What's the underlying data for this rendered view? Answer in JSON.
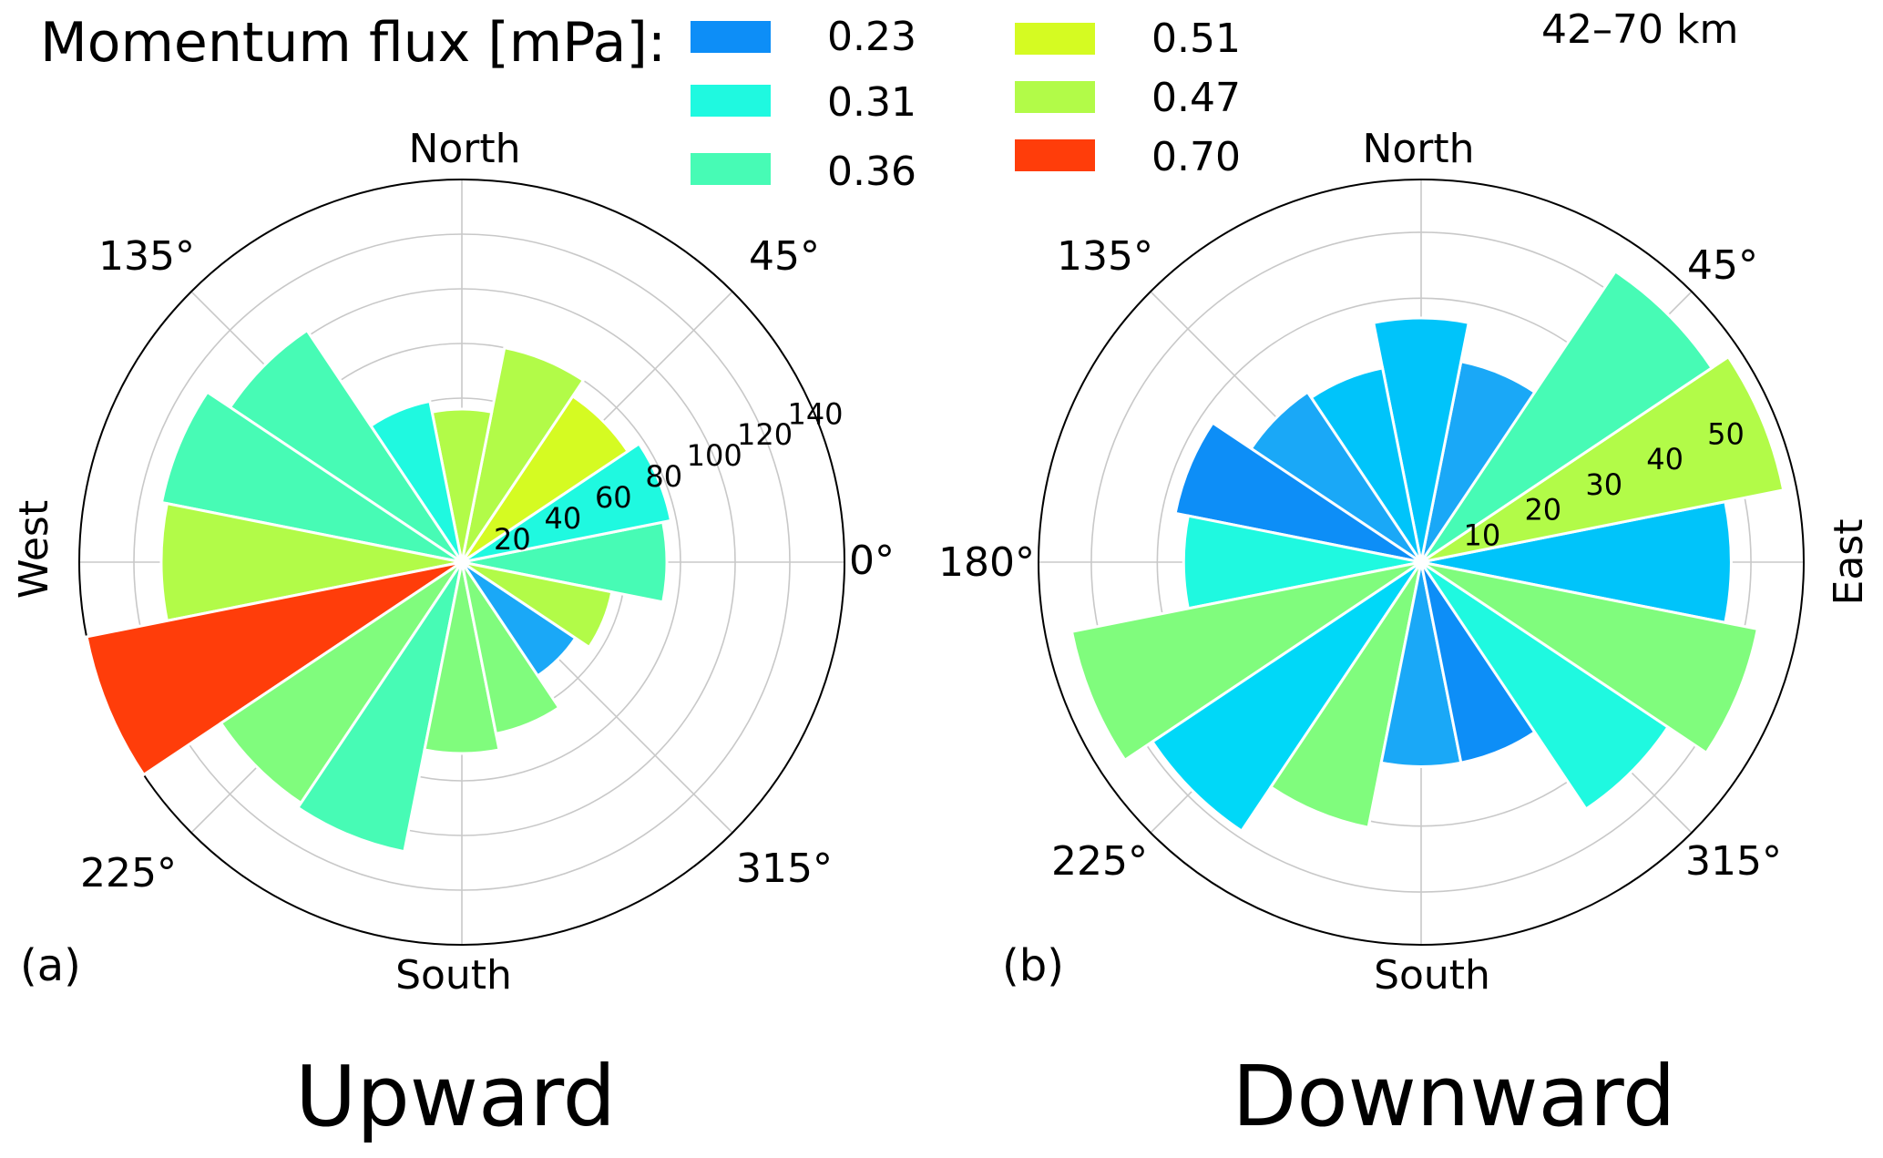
{
  "legend": {
    "title": "Momentum flux [mPa]:",
    "entries": [
      {
        "label": "0.23",
        "color": "#0d8ef7"
      },
      {
        "label": "0.31",
        "color": "#1ff9e0"
      },
      {
        "label": "0.36",
        "color": "#47fbb5"
      },
      {
        "label": "0.51",
        "color": "#d5fb22"
      },
      {
        "label": "0.47",
        "color": "#b2fb48"
      },
      {
        "label": "0.70",
        "color": "#ff3d0a"
      }
    ]
  },
  "altitude_label": "42–70 km",
  "panels": [
    {
      "panel_label": "(a)",
      "title": "Upward",
      "north_label": "North",
      "south_label": "South",
      "east_label": "",
      "west_label": "West",
      "angle_labels": {
        "0": "0°",
        "45": "45°",
        "135": "135°",
        "180": "",
        "225": "225°",
        "315": "315°"
      }
    },
    {
      "panel_label": "(b)",
      "title": "Downward",
      "north_label": "North",
      "south_label": "South",
      "east_label": "East",
      "west_label": "",
      "angle_labels": {
        "0": "",
        "45": "45°",
        "135": "135°",
        "180": "180°",
        "225": "225°",
        "315": "315°"
      }
    }
  ],
  "chart_data": [
    {
      "type": "bar",
      "subtype": "polar-rose",
      "title": "Upward",
      "theta_unit": "degrees",
      "theta_zero": "east",
      "theta_direction": "counterclockwise",
      "radial_ticks": [
        20,
        40,
        60,
        80,
        100,
        120,
        140
      ],
      "rlim": [
        0,
        140
      ],
      "grid": true,
      "bars": [
        {
          "theta": 0,
          "r": 75,
          "color": "#47fbb5"
        },
        {
          "theta": 22.5,
          "r": 78,
          "color": "#1ff9e0"
        },
        {
          "theta": 45,
          "r": 73,
          "color": "#d5fb22"
        },
        {
          "theta": 67.5,
          "r": 80,
          "color": "#b2fb48"
        },
        {
          "theta": 90,
          "r": 56,
          "color": "#b2fb48"
        },
        {
          "theta": 112.5,
          "r": 60,
          "color": "#1ff9e0"
        },
        {
          "theta": 135,
          "r": 102,
          "color": "#47fbb5"
        },
        {
          "theta": 157.5,
          "r": 112,
          "color": "#47fbb5"
        },
        {
          "theta": 180,
          "r": 110,
          "color": "#b2fb48"
        },
        {
          "theta": 202.5,
          "r": 140,
          "color": "#ff3d0a"
        },
        {
          "theta": 225,
          "r": 106,
          "color": "#80fc7d"
        },
        {
          "theta": 247.5,
          "r": 108,
          "color": "#47fbb5"
        },
        {
          "theta": 270,
          "r": 70,
          "color": "#80fc7d"
        },
        {
          "theta": 292.5,
          "r": 64,
          "color": "#80fc7d"
        },
        {
          "theta": 315,
          "r": 50,
          "color": "#1aa8f7"
        },
        {
          "theta": 337.5,
          "r": 56,
          "color": "#b2fb48"
        }
      ]
    },
    {
      "type": "bar",
      "subtype": "polar-rose",
      "title": "Downward",
      "theta_unit": "degrees",
      "theta_zero": "east",
      "theta_direction": "counterclockwise",
      "radial_ticks": [
        10,
        20,
        30,
        40,
        50
      ],
      "rlim": [
        0,
        58
      ],
      "grid": true,
      "bars": [
        {
          "theta": 0,
          "r": 47,
          "color": "#00c4fa"
        },
        {
          "theta": 22.5,
          "r": 56,
          "color": "#b2fb48"
        },
        {
          "theta": 45,
          "r": 53,
          "color": "#47fbb5"
        },
        {
          "theta": 67.5,
          "r": 31,
          "color": "#1aa8f7"
        },
        {
          "theta": 90,
          "r": 37,
          "color": "#00c4fa"
        },
        {
          "theta": 112.5,
          "r": 30,
          "color": "#00c4fa"
        },
        {
          "theta": 135,
          "r": 31,
          "color": "#1aa8f7"
        },
        {
          "theta": 157.5,
          "r": 38,
          "color": "#0d8ef7"
        },
        {
          "theta": 180,
          "r": 36,
          "color": "#1ff9e0"
        },
        {
          "theta": 202.5,
          "r": 54,
          "color": "#80fc7d"
        },
        {
          "theta": 225,
          "r": 49,
          "color": "#00d8f8"
        },
        {
          "theta": 247.5,
          "r": 41,
          "color": "#80fc7d"
        },
        {
          "theta": 270,
          "r": 31,
          "color": "#1aa8f7"
        },
        {
          "theta": 292.5,
          "r": 31,
          "color": "#0d8ef7"
        },
        {
          "theta": 315,
          "r": 45,
          "color": "#1ff9e0"
        },
        {
          "theta": 337.5,
          "r": 52,
          "color": "#80fc7d"
        }
      ]
    }
  ]
}
